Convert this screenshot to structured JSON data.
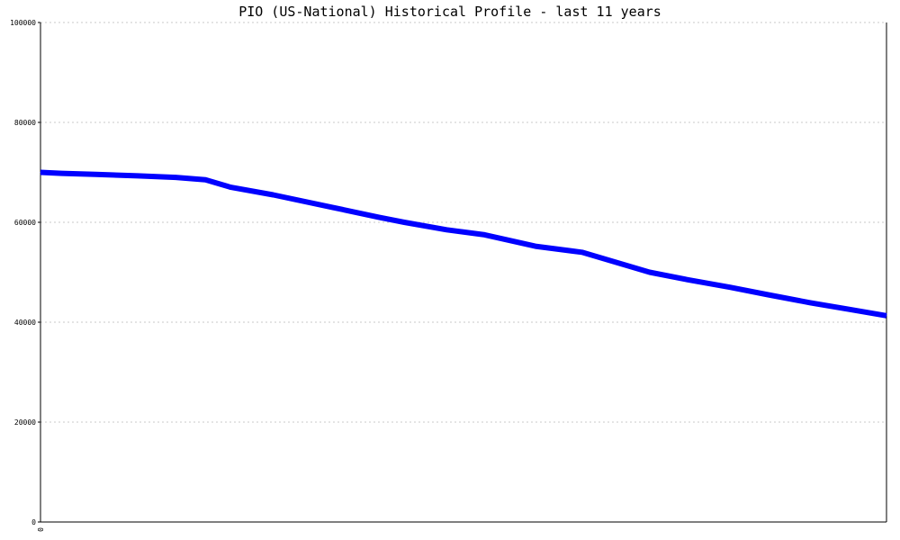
{
  "chart_data": {
    "type": "line",
    "title": "PIO (US-National) Historical Profile - last 11 years",
    "xlabel": "",
    "ylabel": "",
    "ylim": [
      0,
      100000
    ],
    "yticks": [
      "0",
      "20000",
      "40000",
      "60000",
      "80000",
      "100000"
    ],
    "xticks": [
      "0"
    ],
    "grid": true,
    "colors": {
      "series": "#0000ff",
      "grid": "#c8c8c8",
      "axis": "#000000"
    },
    "series": [
      {
        "x": [
          0,
          0.025,
          0.065,
          0.115,
          0.16,
          0.195,
          0.225,
          0.275,
          0.345,
          0.4,
          0.43,
          0.48,
          0.525,
          0.585,
          0.64,
          0.68,
          0.72,
          0.765,
          0.815,
          0.86,
          0.91,
          0.955,
          1.0
        ],
        "values": [
          70000,
          69800,
          69600,
          69300,
          69000,
          68500,
          67000,
          65500,
          63000,
          61000,
          60000,
          58500,
          57500,
          55200,
          54000,
          52000,
          50000,
          48500,
          47000,
          45500,
          43900,
          42600,
          41300
        ]
      }
    ]
  }
}
